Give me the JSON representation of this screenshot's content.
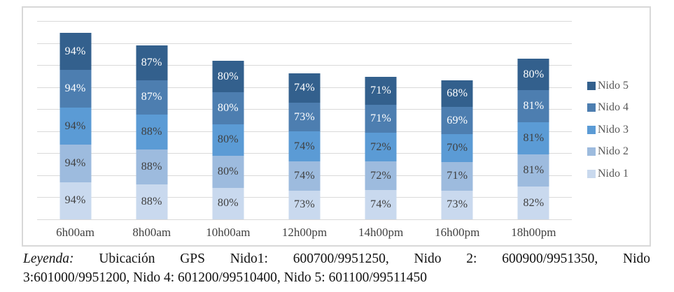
{
  "chart_data": {
    "type": "bar",
    "stacked": true,
    "title": "",
    "xlabel": "",
    "ylabel": "",
    "ylim": [
      0,
      500
    ],
    "gridline_count": 9,
    "grid": true,
    "legend_position": "right",
    "value_suffix": "%",
    "categories": [
      "6h00am",
      "8h00am",
      "10h00am",
      "12h00pm",
      "14h00pm",
      "16h00pm",
      "18h00pm"
    ],
    "series": [
      {
        "name": "Nido 1",
        "color": "#c9d9ee",
        "label_color": "#3f3f3f",
        "values": [
          94,
          88,
          80,
          73,
          74,
          73,
          82
        ]
      },
      {
        "name": "Nido 2",
        "color": "#9dbbde",
        "label_color": "#3f3f3f",
        "values": [
          94,
          88,
          80,
          74,
          72,
          71,
          81
        ]
      },
      {
        "name": "Nido 3",
        "color": "#5b9bd5",
        "label_color": "#3f3f3f",
        "values": [
          94,
          88,
          80,
          74,
          72,
          70,
          81
        ]
      },
      {
        "name": "Nido 4",
        "color": "#4d7eb0",
        "label_color": "#ffffff",
        "values": [
          94,
          87,
          80,
          73,
          71,
          69,
          81
        ]
      },
      {
        "name": "Nido 5",
        "color": "#33608d",
        "label_color": "#ffffff",
        "values": [
          94,
          87,
          80,
          74,
          71,
          68,
          80
        ]
      }
    ],
    "legend_order": [
      "Nido 5",
      "Nido 4",
      "Nido 3",
      "Nido 2",
      "Nido 1"
    ]
  },
  "caption": {
    "label": "Leyenda:",
    "line1_rest": "Ubicación GPS Nido1: 600700/9951250, Nido 2: 600900/9951350, Nido",
    "line2": "3:601000/9951200, Nido 4: 601200/99510400, Nido 5: 601100/99511450"
  },
  "colors": {
    "gridline": "#d9d9d9",
    "frame_border": "#d8d8d8",
    "category_text": "#404040",
    "legend_text": "#595959"
  }
}
